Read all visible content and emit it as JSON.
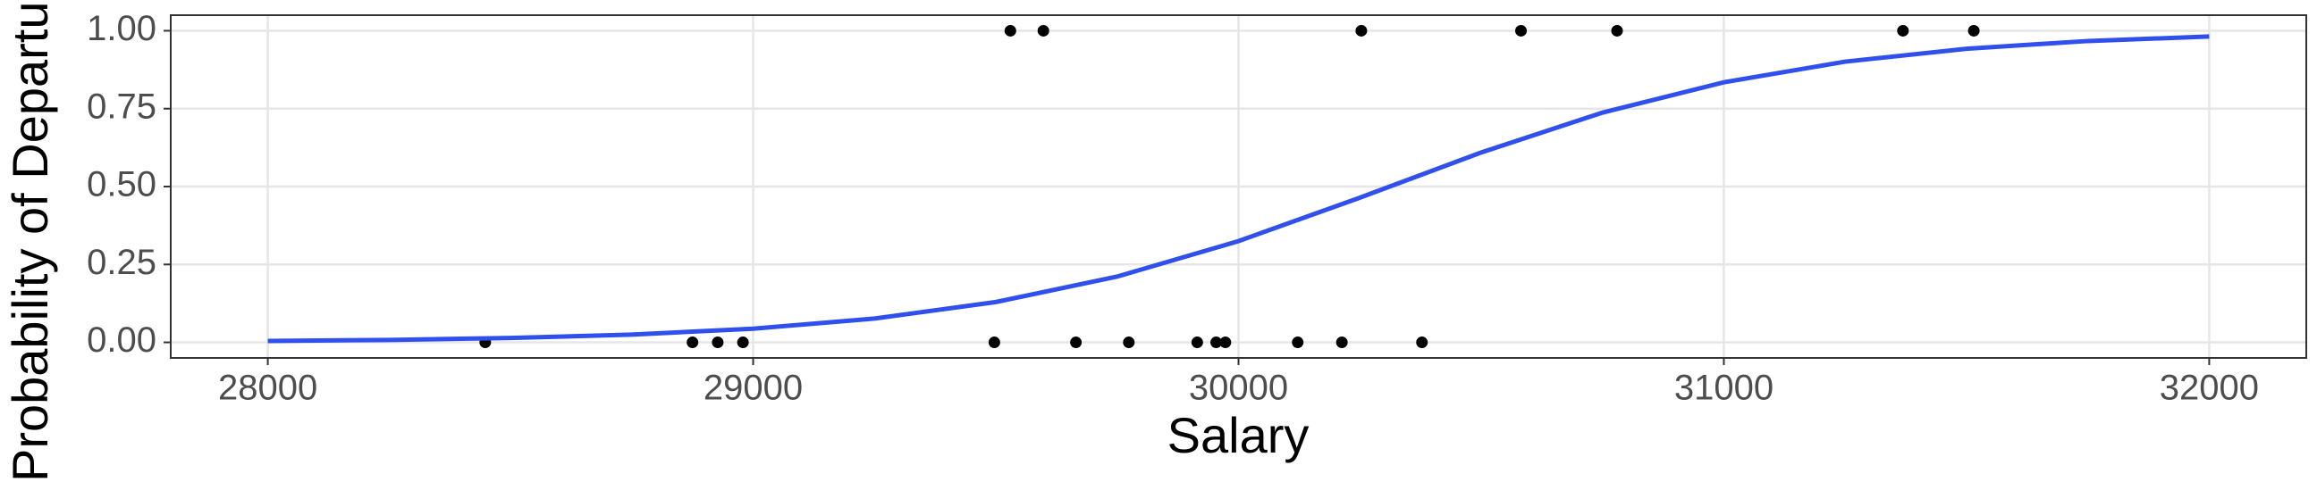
{
  "chart_data": [
    {
      "type": "scatter",
      "x_label": "Salary",
      "y_label": "Probability of Departure",
      "x": [
        28448,
        28875,
        28927,
        28979,
        29497,
        29665,
        29774,
        29915,
        29954,
        29973,
        30122,
        30213,
        30378,
        29530,
        29598,
        30253,
        30582,
        30780,
        31369,
        31515
      ],
      "values": [
        0,
        0,
        0,
        0,
        0,
        0,
        0,
        0,
        0,
        0,
        0,
        0,
        0,
        1,
        1,
        1,
        1,
        1,
        1,
        1
      ],
      "color": "#000000",
      "xlim": [
        27800,
        32200
      ],
      "ylim": [
        -0.05,
        1.05
      ],
      "xticks": [
        28000,
        29000,
        30000,
        31000,
        32000
      ],
      "yticks": [
        {
          "value": 0,
          "label": "0.00"
        },
        {
          "value": 0.25,
          "label": "0.25"
        },
        {
          "value": 0.5,
          "label": "0.50"
        },
        {
          "value": 0.75,
          "label": "0.75"
        },
        {
          "value": 1,
          "label": "1.00"
        }
      ],
      "grid": true
    },
    {
      "type": "line",
      "x": [
        28000,
        28250,
        28500,
        28750,
        29000,
        29250,
        29500,
        29750,
        30000,
        30250,
        30500,
        30750,
        31000,
        31250,
        31500,
        31750,
        32000
      ],
      "values": [
        0.0044,
        0.0078,
        0.014,
        0.0249,
        0.0439,
        0.0763,
        0.1294,
        0.2111,
        0.325,
        0.4643,
        0.6093,
        0.7373,
        0.8347,
        0.9009,
        0.9423,
        0.9671,
        0.9815
      ],
      "color": "#3050ee"
    }
  ]
}
